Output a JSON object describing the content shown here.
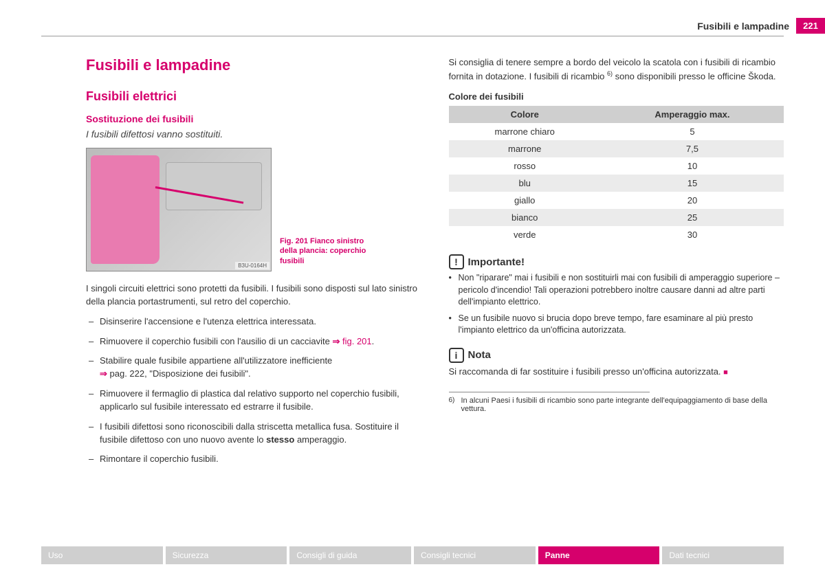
{
  "header": {
    "section": "Fusibili e lampadine",
    "page": "221"
  },
  "left": {
    "h1": "Fusibili e lampadine",
    "h2": "Fusibili elettrici",
    "h3": "Sostituzione dei fusibili",
    "summary": "I fusibili difettosi vanno sostituiti.",
    "figure": {
      "caption": "Fig. 201  Fianco sinistro della plancia: coperchio fusibili",
      "code": "B3U-0164H"
    },
    "para1": "I singoli circuiti elettrici sono protetti da fusibili. I fusibili sono disposti sul lato sinistro della plancia portastrumenti, sul retro del coperchio.",
    "steps": [
      {
        "text": "Disinserire l'accensione e l'utenza elettrica interessata."
      },
      {
        "text": "Rimuovere il coperchio fusibili con l'ausilio di un cacciavite ",
        "ref": "fig. 201"
      },
      {
        "text": "Stabilire quale fusibile appartiene all'utilizzatore inefficiente ",
        "ref": "pag. 222, \"Disposizione dei fusibili\""
      },
      {
        "text": "Rimuovere il fermaglio di plastica dal relativo supporto nel coperchio fusibili, applicarlo sul fusibile interessato ed estrarre il fusibile."
      },
      {
        "text_pre": "I fusibili difettosi sono riconoscibili dalla striscetta metallica fusa. Sostituire il fusibile difettoso con uno nuovo avente lo ",
        "bold": "stesso",
        "text_post": " amperaggio."
      },
      {
        "text": "Rimontare il coperchio fusibili."
      }
    ]
  },
  "right": {
    "intro_a": "Si consiglia di tenere sempre a bordo del veicolo la scatola con i fusibili di ricambio fornita in dotazione. I fusibili di ricambio ",
    "intro_sup": "6)",
    "intro_b": " sono disponibili presso le officine Škoda.",
    "table_title": "Colore dei fusibili",
    "table": {
      "headers": [
        "Colore",
        "Amperaggio max."
      ],
      "rows": [
        [
          "marrone chiaro",
          "5"
        ],
        [
          "marrone",
          "7,5"
        ],
        [
          "rosso",
          "10"
        ],
        [
          "blu",
          "15"
        ],
        [
          "giallo",
          "20"
        ],
        [
          "bianco",
          "25"
        ],
        [
          "verde",
          "30"
        ]
      ]
    },
    "important": {
      "icon": "!",
      "title": "Importante!",
      "items": [
        "Non \"riparare\" mai i fusibili e non sostituirli mai con fusibili di amperaggio superiore – pericolo d'incendio! Tali operazioni potrebbero inoltre causare danni ad altre parti dell'impianto elettrico.",
        "Se un fusibile nuovo si brucia dopo breve tempo, fare esaminare al più presto l'impianto elettrico da un'officina autorizzata."
      ]
    },
    "note": {
      "icon": "i",
      "title": "Nota",
      "text": "Si raccomanda di far sostituire i fusibili presso un'officina autorizzata."
    },
    "footnote": {
      "num": "6)",
      "text": "In alcuni Paesi i fusibili di ricambio sono parte integrante dell'equipaggiamento di base della vettura."
    }
  },
  "tabs": [
    "Uso",
    "Sicurezza",
    "Consigli di guida",
    "Consigli tecnici",
    "Panne",
    "Dati tecnici"
  ],
  "active_tab_index": 4
}
